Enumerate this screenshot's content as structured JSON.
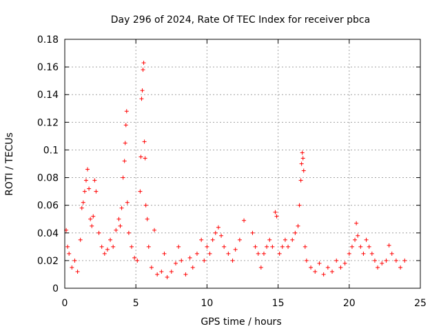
{
  "chart_data": {
    "type": "scatter",
    "title": "Day 296 of 2024, Rate Of TEC Index for receiver pbca",
    "xlabel": "GPS time / hours",
    "ylabel": "ROTI / TECUs",
    "xlim": [
      0,
      25
    ],
    "ylim": [
      0,
      0.18
    ],
    "xticks": [
      "0",
      "5",
      "10",
      "15",
      "20",
      "25"
    ],
    "yticks": [
      "0",
      "0.02",
      "0.04",
      "0.06",
      "0.08",
      "0.1",
      "0.12",
      "0.14",
      "0.16",
      "0.18"
    ],
    "grid": true,
    "marker": "+",
    "color": "#ff0000",
    "series": [
      {
        "name": "ROTI",
        "points": [
          [
            0.1,
            0.042
          ],
          [
            0.2,
            0.03
          ],
          [
            0.3,
            0.025
          ],
          [
            0.5,
            0.015
          ],
          [
            0.7,
            0.02
          ],
          [
            0.9,
            0.012
          ],
          [
            1.1,
            0.035
          ],
          [
            1.2,
            0.058
          ],
          [
            1.3,
            0.062
          ],
          [
            1.4,
            0.07
          ],
          [
            1.5,
            0.078
          ],
          [
            1.6,
            0.086
          ],
          [
            1.7,
            0.072
          ],
          [
            1.8,
            0.05
          ],
          [
            1.9,
            0.045
          ],
          [
            2.0,
            0.052
          ],
          [
            2.1,
            0.078
          ],
          [
            2.2,
            0.07
          ],
          [
            2.4,
            0.04
          ],
          [
            2.6,
            0.03
          ],
          [
            2.8,
            0.025
          ],
          [
            3.0,
            0.028
          ],
          [
            3.2,
            0.035
          ],
          [
            3.4,
            0.03
          ],
          [
            3.6,
            0.042
          ],
          [
            3.8,
            0.05
          ],
          [
            3.9,
            0.045
          ],
          [
            4.0,
            0.058
          ],
          [
            4.1,
            0.08
          ],
          [
            4.2,
            0.092
          ],
          [
            4.25,
            0.105
          ],
          [
            4.3,
            0.118
          ],
          [
            4.35,
            0.128
          ],
          [
            4.4,
            0.062
          ],
          [
            4.5,
            0.04
          ],
          [
            4.7,
            0.03
          ],
          [
            4.9,
            0.022
          ],
          [
            5.1,
            0.02
          ],
          [
            5.3,
            0.07
          ],
          [
            5.35,
            0.095
          ],
          [
            5.4,
            0.137
          ],
          [
            5.45,
            0.143
          ],
          [
            5.5,
            0.158
          ],
          [
            5.55,
            0.163
          ],
          [
            5.6,
            0.106
          ],
          [
            5.65,
            0.094
          ],
          [
            5.7,
            0.06
          ],
          [
            5.8,
            0.05
          ],
          [
            5.9,
            0.03
          ],
          [
            6.1,
            0.015
          ],
          [
            6.3,
            0.042
          ],
          [
            6.5,
            0.01
          ],
          [
            6.8,
            0.012
          ],
          [
            7.0,
            0.025
          ],
          [
            7.2,
            0.008
          ],
          [
            7.5,
            0.012
          ],
          [
            7.8,
            0.018
          ],
          [
            8.0,
            0.03
          ],
          [
            8.2,
            0.02
          ],
          [
            8.5,
            0.01
          ],
          [
            8.8,
            0.022
          ],
          [
            9.0,
            0.015
          ],
          [
            9.3,
            0.025
          ],
          [
            9.6,
            0.035
          ],
          [
            9.8,
            0.02
          ],
          [
            10.0,
            0.03
          ],
          [
            10.2,
            0.025
          ],
          [
            10.4,
            0.035
          ],
          [
            10.6,
            0.04
          ],
          [
            10.8,
            0.044
          ],
          [
            11.0,
            0.038
          ],
          [
            11.2,
            0.03
          ],
          [
            11.5,
            0.025
          ],
          [
            11.8,
            0.02
          ],
          [
            12.0,
            0.028
          ],
          [
            12.3,
            0.035
          ],
          [
            12.6,
            0.049
          ],
          [
            13.2,
            0.04
          ],
          [
            13.4,
            0.03
          ],
          [
            13.6,
            0.025
          ],
          [
            13.8,
            0.015
          ],
          [
            14.0,
            0.025
          ],
          [
            14.2,
            0.03
          ],
          [
            14.4,
            0.035
          ],
          [
            14.6,
            0.03
          ],
          [
            14.8,
            0.055
          ],
          [
            14.9,
            0.052
          ],
          [
            15.1,
            0.025
          ],
          [
            15.3,
            0.03
          ],
          [
            15.5,
            0.035
          ],
          [
            15.7,
            0.03
          ],
          [
            16.0,
            0.035
          ],
          [
            16.2,
            0.04
          ],
          [
            16.4,
            0.045
          ],
          [
            16.5,
            0.06
          ],
          [
            16.6,
            0.078
          ],
          [
            16.65,
            0.09
          ],
          [
            16.7,
            0.098
          ],
          [
            16.75,
            0.094
          ],
          [
            16.8,
            0.085
          ],
          [
            16.9,
            0.03
          ],
          [
            17.0,
            0.02
          ],
          [
            17.3,
            0.015
          ],
          [
            17.6,
            0.012
          ],
          [
            17.9,
            0.018
          ],
          [
            18.2,
            0.01
          ],
          [
            18.5,
            0.015
          ],
          [
            18.8,
            0.012
          ],
          [
            19.1,
            0.02
          ],
          [
            19.4,
            0.015
          ],
          [
            19.7,
            0.018
          ],
          [
            20.0,
            0.025
          ],
          [
            20.2,
            0.03
          ],
          [
            20.4,
            0.035
          ],
          [
            20.5,
            0.047
          ],
          [
            20.6,
            0.038
          ],
          [
            20.8,
            0.03
          ],
          [
            21.0,
            0.025
          ],
          [
            21.2,
            0.035
          ],
          [
            21.4,
            0.03
          ],
          [
            21.6,
            0.025
          ],
          [
            21.8,
            0.02
          ],
          [
            22.0,
            0.015
          ],
          [
            22.3,
            0.018
          ],
          [
            22.6,
            0.02
          ],
          [
            22.8,
            0.031
          ],
          [
            23.0,
            0.025
          ],
          [
            23.3,
            0.02
          ],
          [
            23.6,
            0.015
          ],
          [
            23.9,
            0.02
          ]
        ]
      }
    ]
  }
}
